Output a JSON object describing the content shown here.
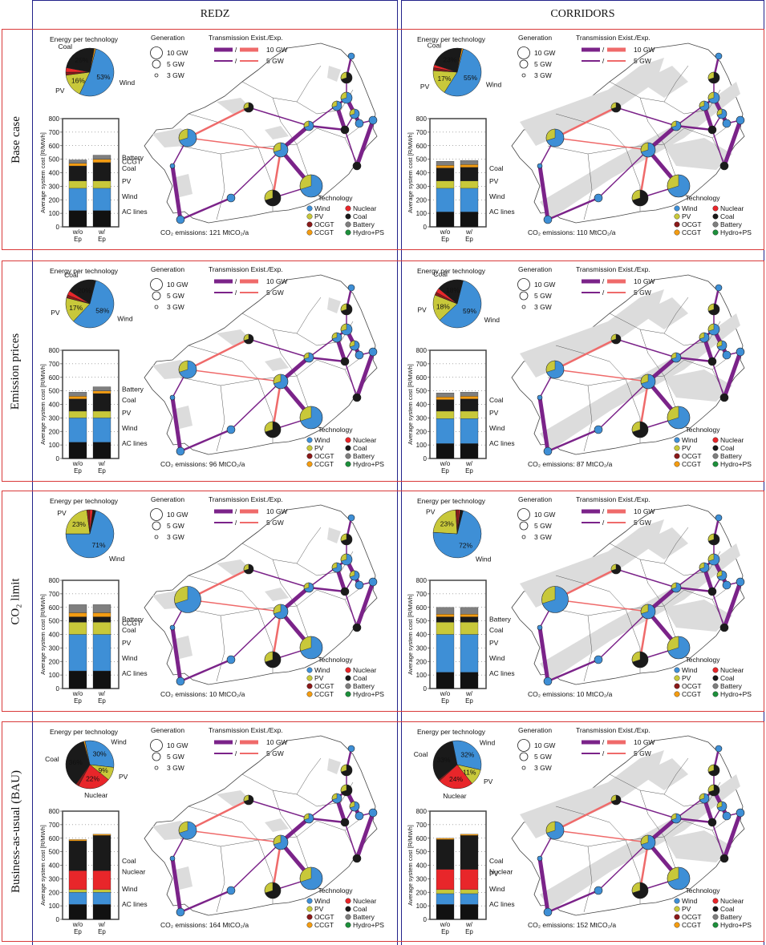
{
  "columns": [
    "REDZ",
    "CORRIDORS"
  ],
  "rows": [
    "Base case",
    "Emission prices",
    "CO₂ limit",
    "Business-as-usual (BAU)"
  ],
  "labels": {
    "energy_title": "Energy per technology",
    "generation": "Generation",
    "gen_sizes": [
      "10 GW",
      "5 GW",
      "3 GW"
    ],
    "transmission": "Transmission Exist./Exp.",
    "tx_sizes": [
      "10 GW",
      "5 GW"
    ],
    "technology": "Technology",
    "ylabel": "Average system cost [R/MWh]",
    "bar_cats": [
      "w/o\nEp",
      "w/\nEp"
    ]
  },
  "tech_legend": [
    {
      "name": "Wind",
      "color": "#3e8fd6"
    },
    {
      "name": "Nuclear",
      "color": "#e8262a"
    },
    {
      "name": "PV",
      "color": "#c8c83a"
    },
    {
      "name": "Coal",
      "color": "#1a1a1a"
    },
    {
      "name": "OCGT",
      "color": "#8b1a1a"
    },
    {
      "name": "Battery",
      "color": "#7f7f7f"
    },
    {
      "name": "CCGT",
      "color": "#f39c12"
    },
    {
      "name": "Hydro+PS",
      "color": "#1d8f3b"
    }
  ],
  "colors": {
    "wind": "#3e8fd6",
    "pv": "#c8c83a",
    "coal": "#1a1a1a",
    "nuclear": "#e8262a",
    "ocgt": "#8b1a1a",
    "ccgt": "#f39c12",
    "battery": "#7f7f7f",
    "hydro": "#1d8f3b",
    "ac": "#111111",
    "tx_exist": "#7b2389",
    "tx_exp": "#ef6a6a",
    "row_border": "#d93a3a",
    "col_border": "#22228a"
  },
  "chart_data": [
    {
      "type": "pie",
      "scenario": "Base case",
      "model": "REDZ",
      "emissions": "CO₂ emissions: 121 MtCO₂/a",
      "pie": [
        {
          "tech": "Wind",
          "value": 53,
          "label": "Wind",
          "pct": "53%"
        },
        {
          "tech": "PV",
          "value": 16,
          "label": "PV",
          "pct": "16%"
        },
        {
          "tech": "OCGT",
          "value": 2
        },
        {
          "tech": "Nuclear",
          "value": 3
        },
        {
          "tech": "Coal",
          "value": 25,
          "label": "Coal",
          "pct": "25%"
        },
        {
          "tech": "CCGT",
          "value": 1
        }
      ],
      "bars": {
        "ylim": [
          0,
          800
        ],
        "stacks": [
          [
            "AC lines",
            120
          ],
          [
            "Wind",
            165
          ],
          [
            "PV",
            55
          ],
          [
            "Coal",
            110
          ],
          [
            "CCGT",
            20
          ],
          [
            "Battery",
            25
          ]
        ],
        "stacks2": [
          [
            "AC lines",
            120
          ],
          [
            "Wind",
            165
          ],
          [
            "PV",
            55
          ],
          [
            "Coal",
            135
          ],
          [
            "CCGT",
            25
          ],
          [
            "Battery",
            30
          ]
        ],
        "labels": [
          "Battery",
          "CCGT",
          "Coal",
          "PV",
          "Wind",
          "AC lines"
        ]
      }
    },
    {
      "type": "pie",
      "scenario": "Base case",
      "model": "CORRIDORS",
      "emissions": "CO₂ emissions: 110 MtCO₂/a",
      "pie": [
        {
          "tech": "Wind",
          "value": 55,
          "label": "Wind",
          "pct": "55%"
        },
        {
          "tech": "PV",
          "value": 17,
          "label": "PV",
          "pct": "17%"
        },
        {
          "tech": "OCGT",
          "value": 2
        },
        {
          "tech": "Nuclear",
          "value": 2
        },
        {
          "tech": "Coal",
          "value": 23,
          "label": "Coal",
          "pct": "23%"
        },
        {
          "tech": "CCGT",
          "value": 1
        }
      ],
      "bars": {
        "ylim": [
          0,
          800
        ],
        "stacks": [
          [
            "AC lines",
            110
          ],
          [
            "Wind",
            175
          ],
          [
            "PV",
            55
          ],
          [
            "Coal",
            95
          ],
          [
            "CCGT",
            20
          ],
          [
            "Battery",
            30
          ]
        ],
        "stacks2": [
          [
            "AC lines",
            110
          ],
          [
            "Wind",
            175
          ],
          [
            "PV",
            55
          ],
          [
            "Coal",
            100
          ],
          [
            "CCGT",
            20
          ],
          [
            "Battery",
            30
          ]
        ],
        "labels": [
          "Coal",
          "PV",
          "Wind",
          "AC lines"
        ]
      }
    },
    {
      "type": "pie",
      "scenario": "Emission prices",
      "model": "REDZ",
      "emissions": "CO₂ emissions: 96 MtCO₂/a",
      "pie": [
        {
          "tech": "Wind",
          "value": 58,
          "label": "Wind",
          "pct": "58%"
        },
        {
          "tech": "PV",
          "value": 17,
          "label": "PV",
          "pct": "17%"
        },
        {
          "tech": "OCGT",
          "value": 2
        },
        {
          "tech": "Nuclear",
          "value": 3
        },
        {
          "tech": "Coal",
          "value": 20,
          "label": "Coal",
          "pct": "20%"
        }
      ],
      "bars": {
        "ylim": [
          0,
          800
        ],
        "stacks": [
          [
            "AC lines",
            120
          ],
          [
            "Wind",
            180
          ],
          [
            "PV",
            50
          ],
          [
            "Coal",
            90
          ],
          [
            "CCGT",
            20
          ],
          [
            "Battery",
            30
          ]
        ],
        "stacks2": [
          [
            "AC lines",
            120
          ],
          [
            "Wind",
            180
          ],
          [
            "PV",
            50
          ],
          [
            "Coal",
            130
          ],
          [
            "CCGT",
            20
          ],
          [
            "Battery",
            30
          ]
        ],
        "labels": [
          "Battery",
          "Coal",
          "PV",
          "Wind",
          "AC lines"
        ]
      }
    },
    {
      "type": "pie",
      "scenario": "Emission prices",
      "model": "CORRIDORS",
      "emissions": "CO₂ emissions: 87 MtCO₂/a",
      "pie": [
        {
          "tech": "Wind",
          "value": 59,
          "label": "Wind",
          "pct": "59%"
        },
        {
          "tech": "PV",
          "value": 18,
          "label": "PV",
          "pct": "18%"
        },
        {
          "tech": "OCGT",
          "value": 2
        },
        {
          "tech": "Nuclear",
          "value": 3
        },
        {
          "tech": "Coal",
          "value": 18,
          "label": "Coal",
          "pct": "18%"
        }
      ],
      "bars": {
        "ylim": [
          0,
          800
        ],
        "stacks": [
          [
            "AC lines",
            110
          ],
          [
            "Wind",
            185
          ],
          [
            "PV",
            55
          ],
          [
            "Coal",
            85
          ],
          [
            "CCGT",
            20
          ],
          [
            "Battery",
            30
          ]
        ],
        "stacks2": [
          [
            "AC lines",
            110
          ],
          [
            "Wind",
            185
          ],
          [
            "PV",
            55
          ],
          [
            "Coal",
            90
          ],
          [
            "CCGT",
            20
          ],
          [
            "Battery",
            30
          ]
        ],
        "labels": [
          "Coal",
          "PV",
          "Wind",
          "AC lines"
        ]
      }
    },
    {
      "type": "pie",
      "scenario": "CO₂ limit",
      "model": "REDZ",
      "emissions": "CO₂ emissions: 10 MtCO₂/a",
      "pie": [
        {
          "tech": "Wind",
          "value": 71,
          "label": "Wind",
          "pct": "71%"
        },
        {
          "tech": "PV",
          "value": 23,
          "label": "PV",
          "pct": "23%"
        },
        {
          "tech": "OCGT",
          "value": 2
        },
        {
          "tech": "Nuclear",
          "value": 2
        },
        {
          "tech": "Coal",
          "value": 2
        }
      ],
      "bars": {
        "ylim": [
          0,
          800
        ],
        "stacks": [
          [
            "AC lines",
            130
          ],
          [
            "Wind",
            270
          ],
          [
            "PV",
            90
          ],
          [
            "Coal",
            40
          ],
          [
            "CCGT",
            30
          ],
          [
            "Battery",
            60
          ]
        ],
        "stacks2": [
          [
            "AC lines",
            130
          ],
          [
            "Wind",
            270
          ],
          [
            "PV",
            90
          ],
          [
            "Coal",
            40
          ],
          [
            "CCGT",
            30
          ],
          [
            "Battery",
            60
          ]
        ],
        "labels": [
          "Battery",
          "CCGT",
          "Coal",
          "PV",
          "Wind",
          "AC lines"
        ]
      }
    },
    {
      "type": "pie",
      "scenario": "CO₂ limit",
      "model": "CORRIDORS",
      "emissions": "CO₂ emissions: 10 MtCO₂/a",
      "pie": [
        {
          "tech": "Wind",
          "value": 72,
          "label": "Wind",
          "pct": "72%"
        },
        {
          "tech": "PV",
          "value": 23,
          "label": "PV",
          "pct": "23%"
        },
        {
          "tech": "OCGT",
          "value": 2
        },
        {
          "tech": "Nuclear",
          "value": 1
        },
        {
          "tech": "Coal",
          "value": 2
        }
      ],
      "bars": {
        "ylim": [
          0,
          800
        ],
        "stacks": [
          [
            "AC lines",
            120
          ],
          [
            "Wind",
            280
          ],
          [
            "PV",
            90
          ],
          [
            "Coal",
            40
          ],
          [
            "CCGT",
            20
          ],
          [
            "Battery",
            50
          ]
        ],
        "stacks2": [
          [
            "AC lines",
            120
          ],
          [
            "Wind",
            280
          ],
          [
            "PV",
            90
          ],
          [
            "Coal",
            40
          ],
          [
            "CCGT",
            20
          ],
          [
            "Battery",
            50
          ]
        ],
        "labels": [
          "Battery",
          "Coal",
          "PV",
          "Wind",
          "AC lines"
        ]
      }
    },
    {
      "type": "pie",
      "scenario": "Business-as-usual (BAU)",
      "model": "REDZ",
      "emissions": "CO₂ emissions: 164 MtCO₂/a",
      "pie": [
        {
          "tech": "Wind",
          "value": 30,
          "label": "Wind",
          "pct": "30%"
        },
        {
          "tech": "PV",
          "value": 9,
          "label": "PV",
          "pct": "9%"
        },
        {
          "tech": "Nuclear",
          "value": 22,
          "label": "Nuclear",
          "pct": "22%"
        },
        {
          "tech": "OCGT",
          "value": 2
        },
        {
          "tech": "Coal",
          "value": 36,
          "label": "Coal",
          "pct": "36%"
        },
        {
          "tech": "CCGT",
          "value": 1
        }
      ],
      "bars": {
        "ylim": [
          0,
          800
        ],
        "stacks": [
          [
            "AC lines",
            110
          ],
          [
            "Wind",
            90
          ],
          [
            "PV",
            20
          ],
          [
            "Nuclear",
            140
          ],
          [
            "Coal",
            220
          ],
          [
            "CCGT",
            10
          ]
        ],
        "stacks2": [
          [
            "AC lines",
            110
          ],
          [
            "Wind",
            90
          ],
          [
            "PV",
            20
          ],
          [
            "Nuclear",
            140
          ],
          [
            "Coal",
            260
          ],
          [
            "CCGT",
            10
          ]
        ],
        "labels": [
          "Coal",
          "Nuclear",
          "Wind",
          "AC lines"
        ]
      }
    },
    {
      "type": "pie",
      "scenario": "Business-as-usual (BAU)",
      "model": "CORRIDORS",
      "emissions": "CO₂ emissions: 152 MtCO₂/a",
      "pie": [
        {
          "tech": "Wind",
          "value": 32,
          "label": "Wind",
          "pct": "32%"
        },
        {
          "tech": "PV",
          "value": 11,
          "label": "PV",
          "pct": "11%"
        },
        {
          "tech": "Nuclear",
          "value": 24,
          "label": "Nuclear",
          "pct": "24%"
        },
        {
          "tech": "OCGT",
          "value": 1
        },
        {
          "tech": "Coal",
          "value": 33,
          "label": "Coal",
          "pct": "33%"
        }
      ],
      "bars": {
        "ylim": [
          0,
          800
        ],
        "stacks": [
          [
            "AC lines",
            110
          ],
          [
            "Wind",
            80
          ],
          [
            "PV",
            30
          ],
          [
            "Nuclear",
            150
          ],
          [
            "Coal",
            220
          ],
          [
            "CCGT",
            10
          ]
        ],
        "stacks2": [
          [
            "AC lines",
            110
          ],
          [
            "Wind",
            80
          ],
          [
            "PV",
            30
          ],
          [
            "Nuclear",
            150
          ],
          [
            "Coal",
            250
          ],
          [
            "CCGT",
            10
          ]
        ],
        "labels": [
          "Coal",
          "Nuclear",
          "PV",
          "Wind",
          "AC lines"
        ]
      }
    }
  ]
}
